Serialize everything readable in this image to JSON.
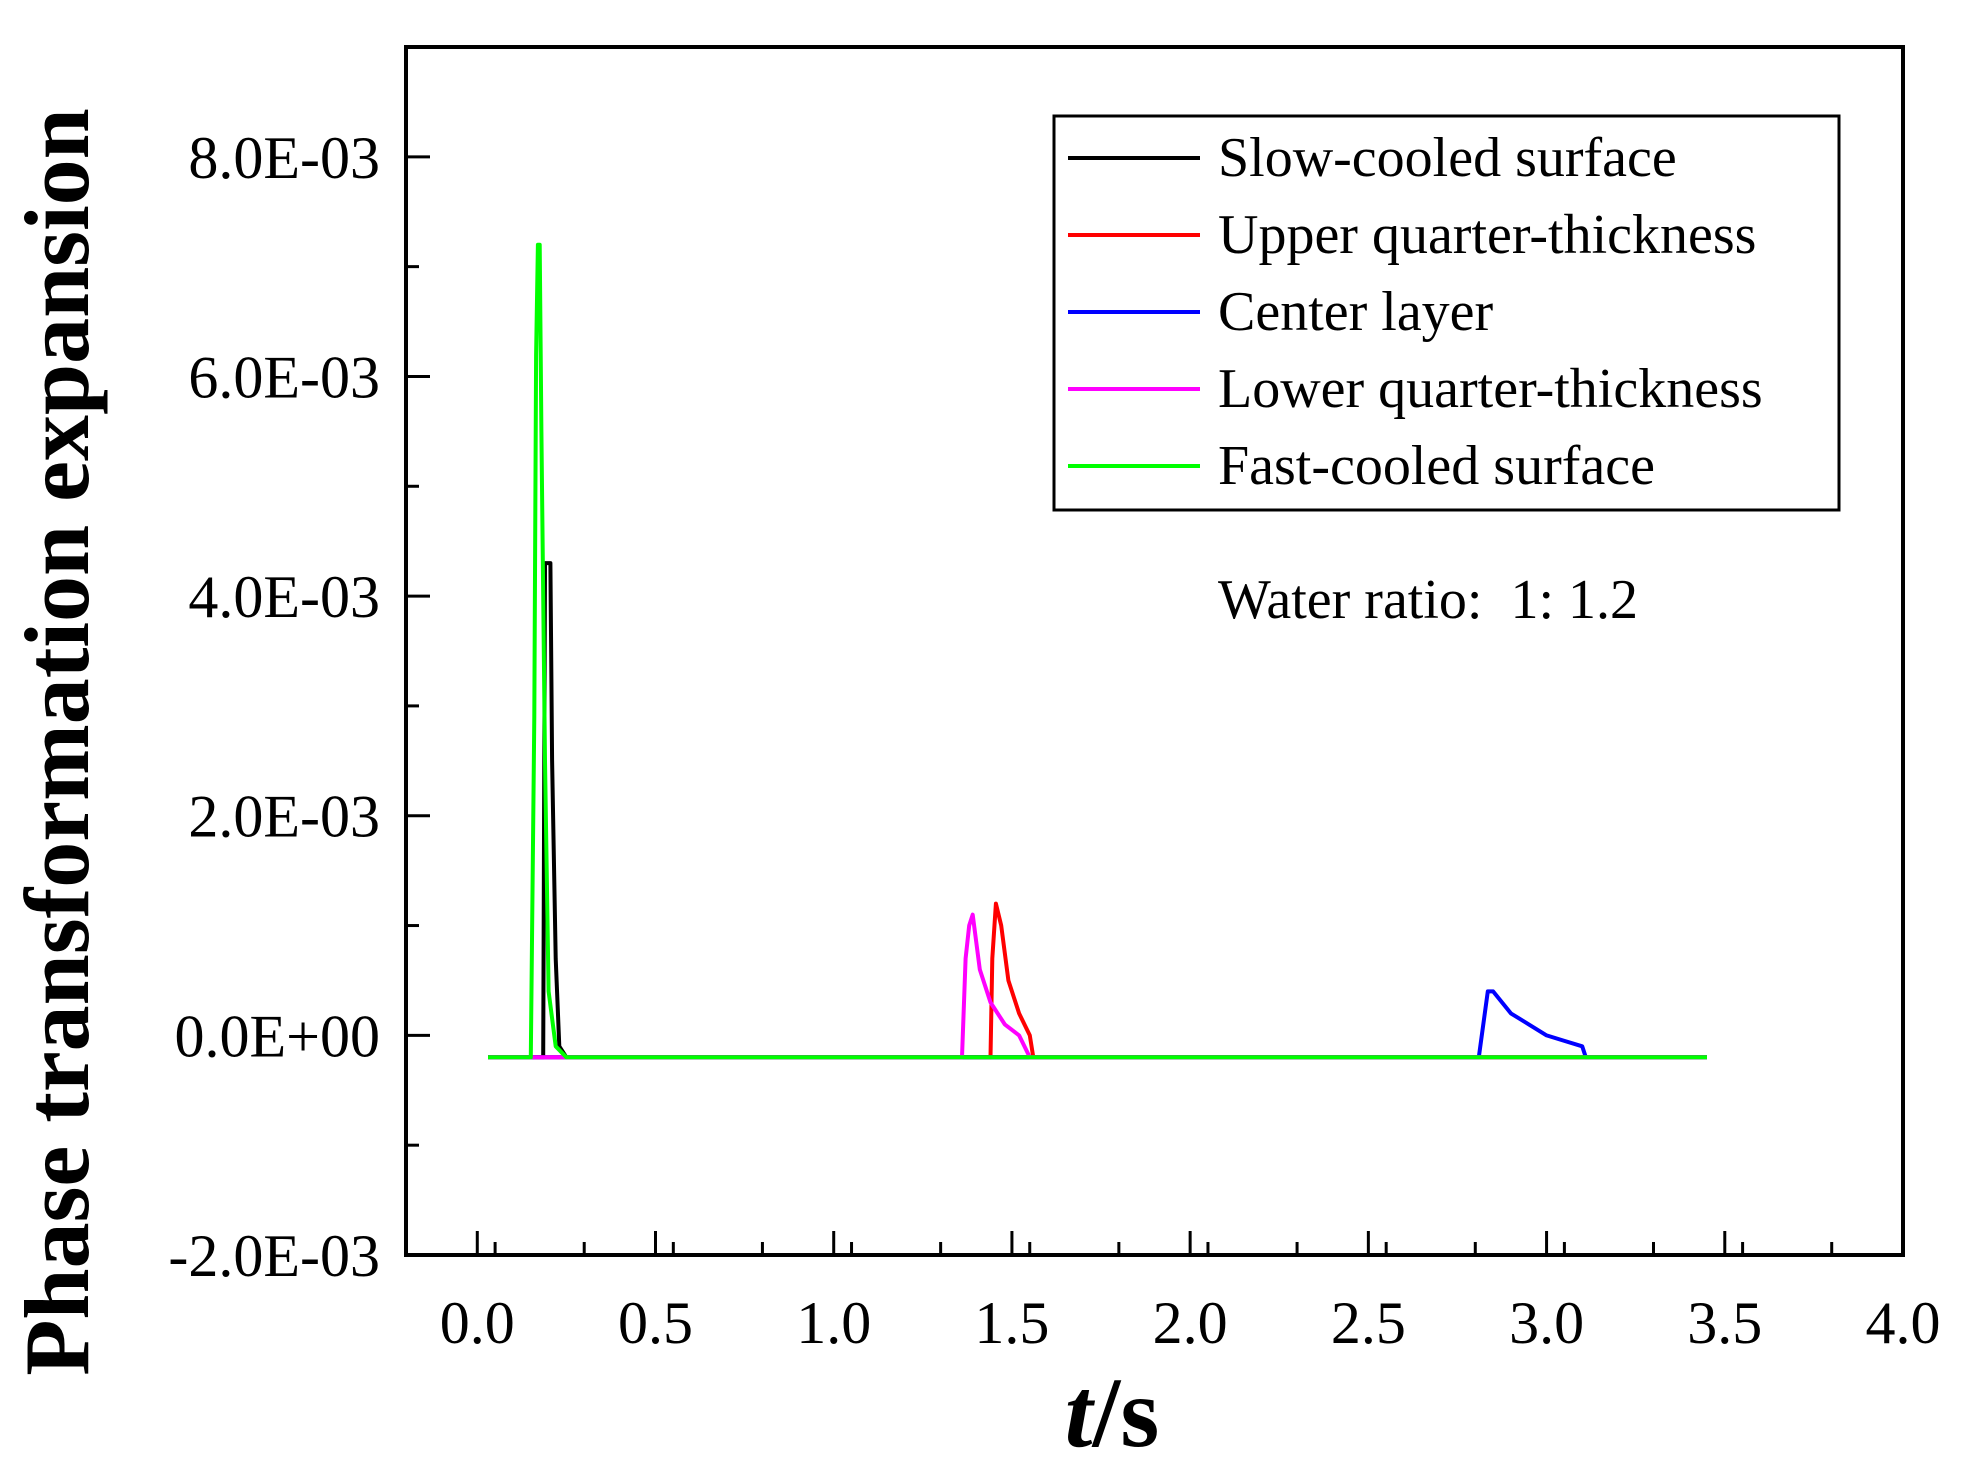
{
  "chart_data": {
    "type": "line",
    "title": "",
    "xlabel": "t/s",
    "xlabel_italic_part": "t",
    "xlabel_unit_part": "/s",
    "ylabel": "Phase transformation expansion",
    "xlim": [
      -0.2,
      4.0
    ],
    "ylim": [
      -0.002,
      0.009
    ],
    "x_ticks": [
      0.0,
      0.5,
      1.0,
      1.5,
      2.0,
      2.5,
      3.0,
      3.5,
      4.0
    ],
    "x_tick_labels": [
      "0.0",
      "0.5",
      "1.0",
      "1.5",
      "2.0",
      "2.5",
      "3.0",
      "3.5",
      "4.0"
    ],
    "y_ticks": [
      -0.002,
      0.0,
      0.002,
      0.004,
      0.006,
      0.008
    ],
    "y_tick_labels": [
      "-2.0E-03",
      "0.0E+00",
      "2.0E-03",
      "4.0E-03",
      "6.0E-03",
      "8.0E-03"
    ],
    "grid": false,
    "legend_position": "top-right",
    "annotation": "Water ratio:  1: 1.2",
    "series": [
      {
        "name": "Slow-cooled surface",
        "color": "#000000",
        "x": [
          0.03,
          0.17,
          0.185,
          0.19,
          0.205,
          0.21,
          0.22,
          0.23,
          0.25,
          0.3,
          1.0,
          2.0,
          3.0,
          3.45
        ],
        "y": [
          -0.0002,
          -0.0002,
          -0.0002,
          0.0043,
          0.0043,
          0.0025,
          0.0007,
          -0.0001,
          -0.0002,
          -0.0002,
          -0.0002,
          -0.0002,
          -0.0002,
          -0.0002
        ]
      },
      {
        "name": "Upper quarter-thickness",
        "color": "#ff0000",
        "x": [
          0.03,
          1.0,
          1.44,
          1.445,
          1.455,
          1.47,
          1.49,
          1.52,
          1.55,
          1.56,
          2.0,
          3.0,
          3.45
        ],
        "y": [
          -0.0002,
          -0.0002,
          -0.0002,
          0.0007,
          0.0012,
          0.001,
          0.0005,
          0.0002,
          0.0,
          -0.0002,
          -0.0002,
          -0.0002,
          -0.0002
        ]
      },
      {
        "name": "Center layer",
        "color": "#0000ff",
        "x": [
          0.03,
          1.0,
          2.0,
          2.81,
          2.835,
          2.85,
          2.9,
          2.95,
          3.0,
          3.05,
          3.1,
          3.11,
          3.45
        ],
        "y": [
          -0.0002,
          -0.0002,
          -0.0002,
          -0.0002,
          0.0004,
          0.0004,
          0.0002,
          0.0001,
          0.0,
          -5e-05,
          -0.0001,
          -0.0002,
          -0.0002
        ]
      },
      {
        "name": "Lower quarter-thickness",
        "color": "#ff00ff",
        "x": [
          0.03,
          1.0,
          1.36,
          1.37,
          1.38,
          1.39,
          1.41,
          1.44,
          1.48,
          1.52,
          1.55,
          2.0,
          3.0,
          3.45
        ],
        "y": [
          -0.0002,
          -0.0002,
          -0.0002,
          0.0007,
          0.001,
          0.0011,
          0.0006,
          0.0003,
          0.0001,
          0.0,
          -0.0002,
          -0.0002,
          -0.0002,
          -0.0002
        ]
      },
      {
        "name": "Fast-cooled surface",
        "color": "#00ff00",
        "x": [
          0.03,
          0.15,
          0.16,
          0.165,
          0.17,
          0.175,
          0.18,
          0.19,
          0.2,
          0.22,
          0.25,
          1.0,
          2.0,
          3.0,
          3.45
        ],
        "y": [
          -0.0002,
          -0.0002,
          0.0029,
          0.0062,
          0.0072,
          0.0072,
          0.0055,
          0.0025,
          0.0004,
          -0.0001,
          -0.0002,
          -0.0002,
          -0.0002,
          -0.0002,
          -0.0002
        ]
      }
    ]
  }
}
